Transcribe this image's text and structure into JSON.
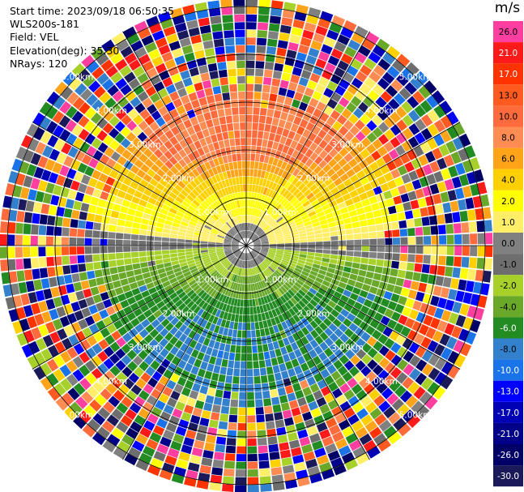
{
  "header": {
    "start_time": "Start time: 2023/09/18 06:50:35",
    "instrument": "WLS200s-181",
    "field": "Field: VEL",
    "elevation": "Elevation(deg): 35.30",
    "nrays": "NRays: 120"
  },
  "chart_data": {
    "type": "heatmap",
    "projection": "polar (PPI)",
    "n_rays": 120,
    "range_rings_km": [
      1.0,
      2.0,
      3.0,
      4.0,
      5.0
    ],
    "ring_labels": [
      "1.00km",
      "2.00km",
      "3.00km",
      "4.00km",
      "5.00km"
    ],
    "radial_lines": "every 30 degrees",
    "colorbar": {
      "unit": "m/s",
      "levels": [
        "26.0",
        "21.0",
        "17.0",
        "13.0",
        "10.0",
        "8.0",
        "6.0",
        "4.0",
        "2.0",
        "1.0",
        "0.0",
        "-1.0",
        "-2.0",
        "-4.0",
        "-6.0",
        "-8.0",
        "-10.0",
        "-13.0",
        "-17.0",
        "-21.0",
        "-26.0",
        "-30.0"
      ],
      "colors": [
        "#ff3fa0",
        "#ff1a1a",
        "#ff3300",
        "#ff5a1f",
        "#ff6b3d",
        "#ff8c52",
        "#ffa318",
        "#ffd000",
        "#ffff00",
        "#ffee66",
        "#808080",
        "#6e6e6e",
        "#a7d12a",
        "#6aa82a",
        "#228b22",
        "#3380cc",
        "#1a73e8",
        "#0000ff",
        "#0000b4",
        "#000088",
        "#000066",
        "#1a1a5a"
      ]
    },
    "pattern": "Near field (<~1 km) velocities near 0 m/s (grey); northern half positive (yellow to orange-red, up to ~8 m/s by 2-3 km); southern half negative (green to blue, down to ~-8 m/s); beyond ~3.5 km noisy values spanning the full colour scale."
  }
}
